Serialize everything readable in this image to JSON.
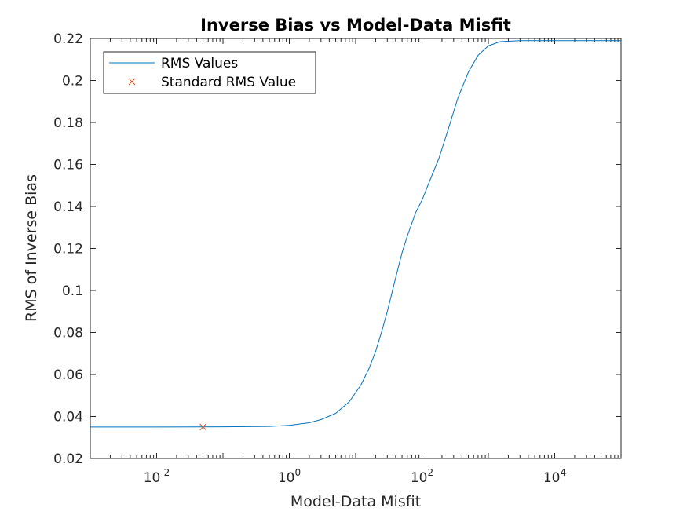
{
  "chart_data": {
    "type": "line",
    "title": "Inverse Bias vs Model-Data Misfit",
    "xlabel": "Model-Data Misfit",
    "ylabel": "RMS of Inverse Bias",
    "xscale": "log",
    "xlim": [
      0.001,
      100000
    ],
    "ylim": [
      0.02,
      0.22
    ],
    "yticks": [
      0.02,
      0.04,
      0.06,
      0.08,
      0.1,
      0.12,
      0.14,
      0.16,
      0.18,
      0.2,
      0.22
    ],
    "ytick_labels": [
      "0.02",
      "0.04",
      "0.06",
      "0.08",
      "0.1",
      "0.12",
      "0.14",
      "0.16",
      "0.18",
      "0.2",
      "0.22"
    ],
    "xticks": [
      0.01,
      1,
      100,
      10000
    ],
    "xtick_labels": [
      {
        "base": "10",
        "exp": "-2"
      },
      {
        "base": "10",
        "exp": "0"
      },
      {
        "base": "10",
        "exp": "2"
      },
      {
        "base": "10",
        "exp": "4"
      }
    ],
    "grid": false,
    "legend_position": "top-left",
    "series": [
      {
        "name": "RMS Values",
        "style": "line",
        "color": "#0072BD",
        "points": [
          [
            0.001,
            0.035
          ],
          [
            0.01,
            0.035
          ],
          [
            0.1,
            0.0351
          ],
          [
            0.5,
            0.0353
          ],
          [
            1,
            0.0358
          ],
          [
            2,
            0.037
          ],
          [
            3,
            0.0385
          ],
          [
            5,
            0.0415
          ],
          [
            8,
            0.047
          ],
          [
            12,
            0.055
          ],
          [
            16,
            0.063
          ],
          [
            20,
            0.071
          ],
          [
            25,
            0.081
          ],
          [
            30,
            0.09
          ],
          [
            40,
            0.106
          ],
          [
            50,
            0.118
          ],
          [
            60,
            0.126
          ],
          [
            80,
            0.137
          ],
          [
            100,
            0.143
          ],
          [
            130,
            0.152
          ],
          [
            180,
            0.163
          ],
          [
            250,
            0.177
          ],
          [
            350,
            0.192
          ],
          [
            500,
            0.204
          ],
          [
            700,
            0.212
          ],
          [
            1000,
            0.2165
          ],
          [
            1500,
            0.2185
          ],
          [
            3000,
            0.219
          ],
          [
            10000,
            0.219
          ],
          [
            100000,
            0.219
          ]
        ]
      },
      {
        "name": "Standard RMS Value",
        "style": "marker-x",
        "color": "#D95319",
        "points": [
          [
            0.05,
            0.035
          ]
        ]
      }
    ]
  }
}
